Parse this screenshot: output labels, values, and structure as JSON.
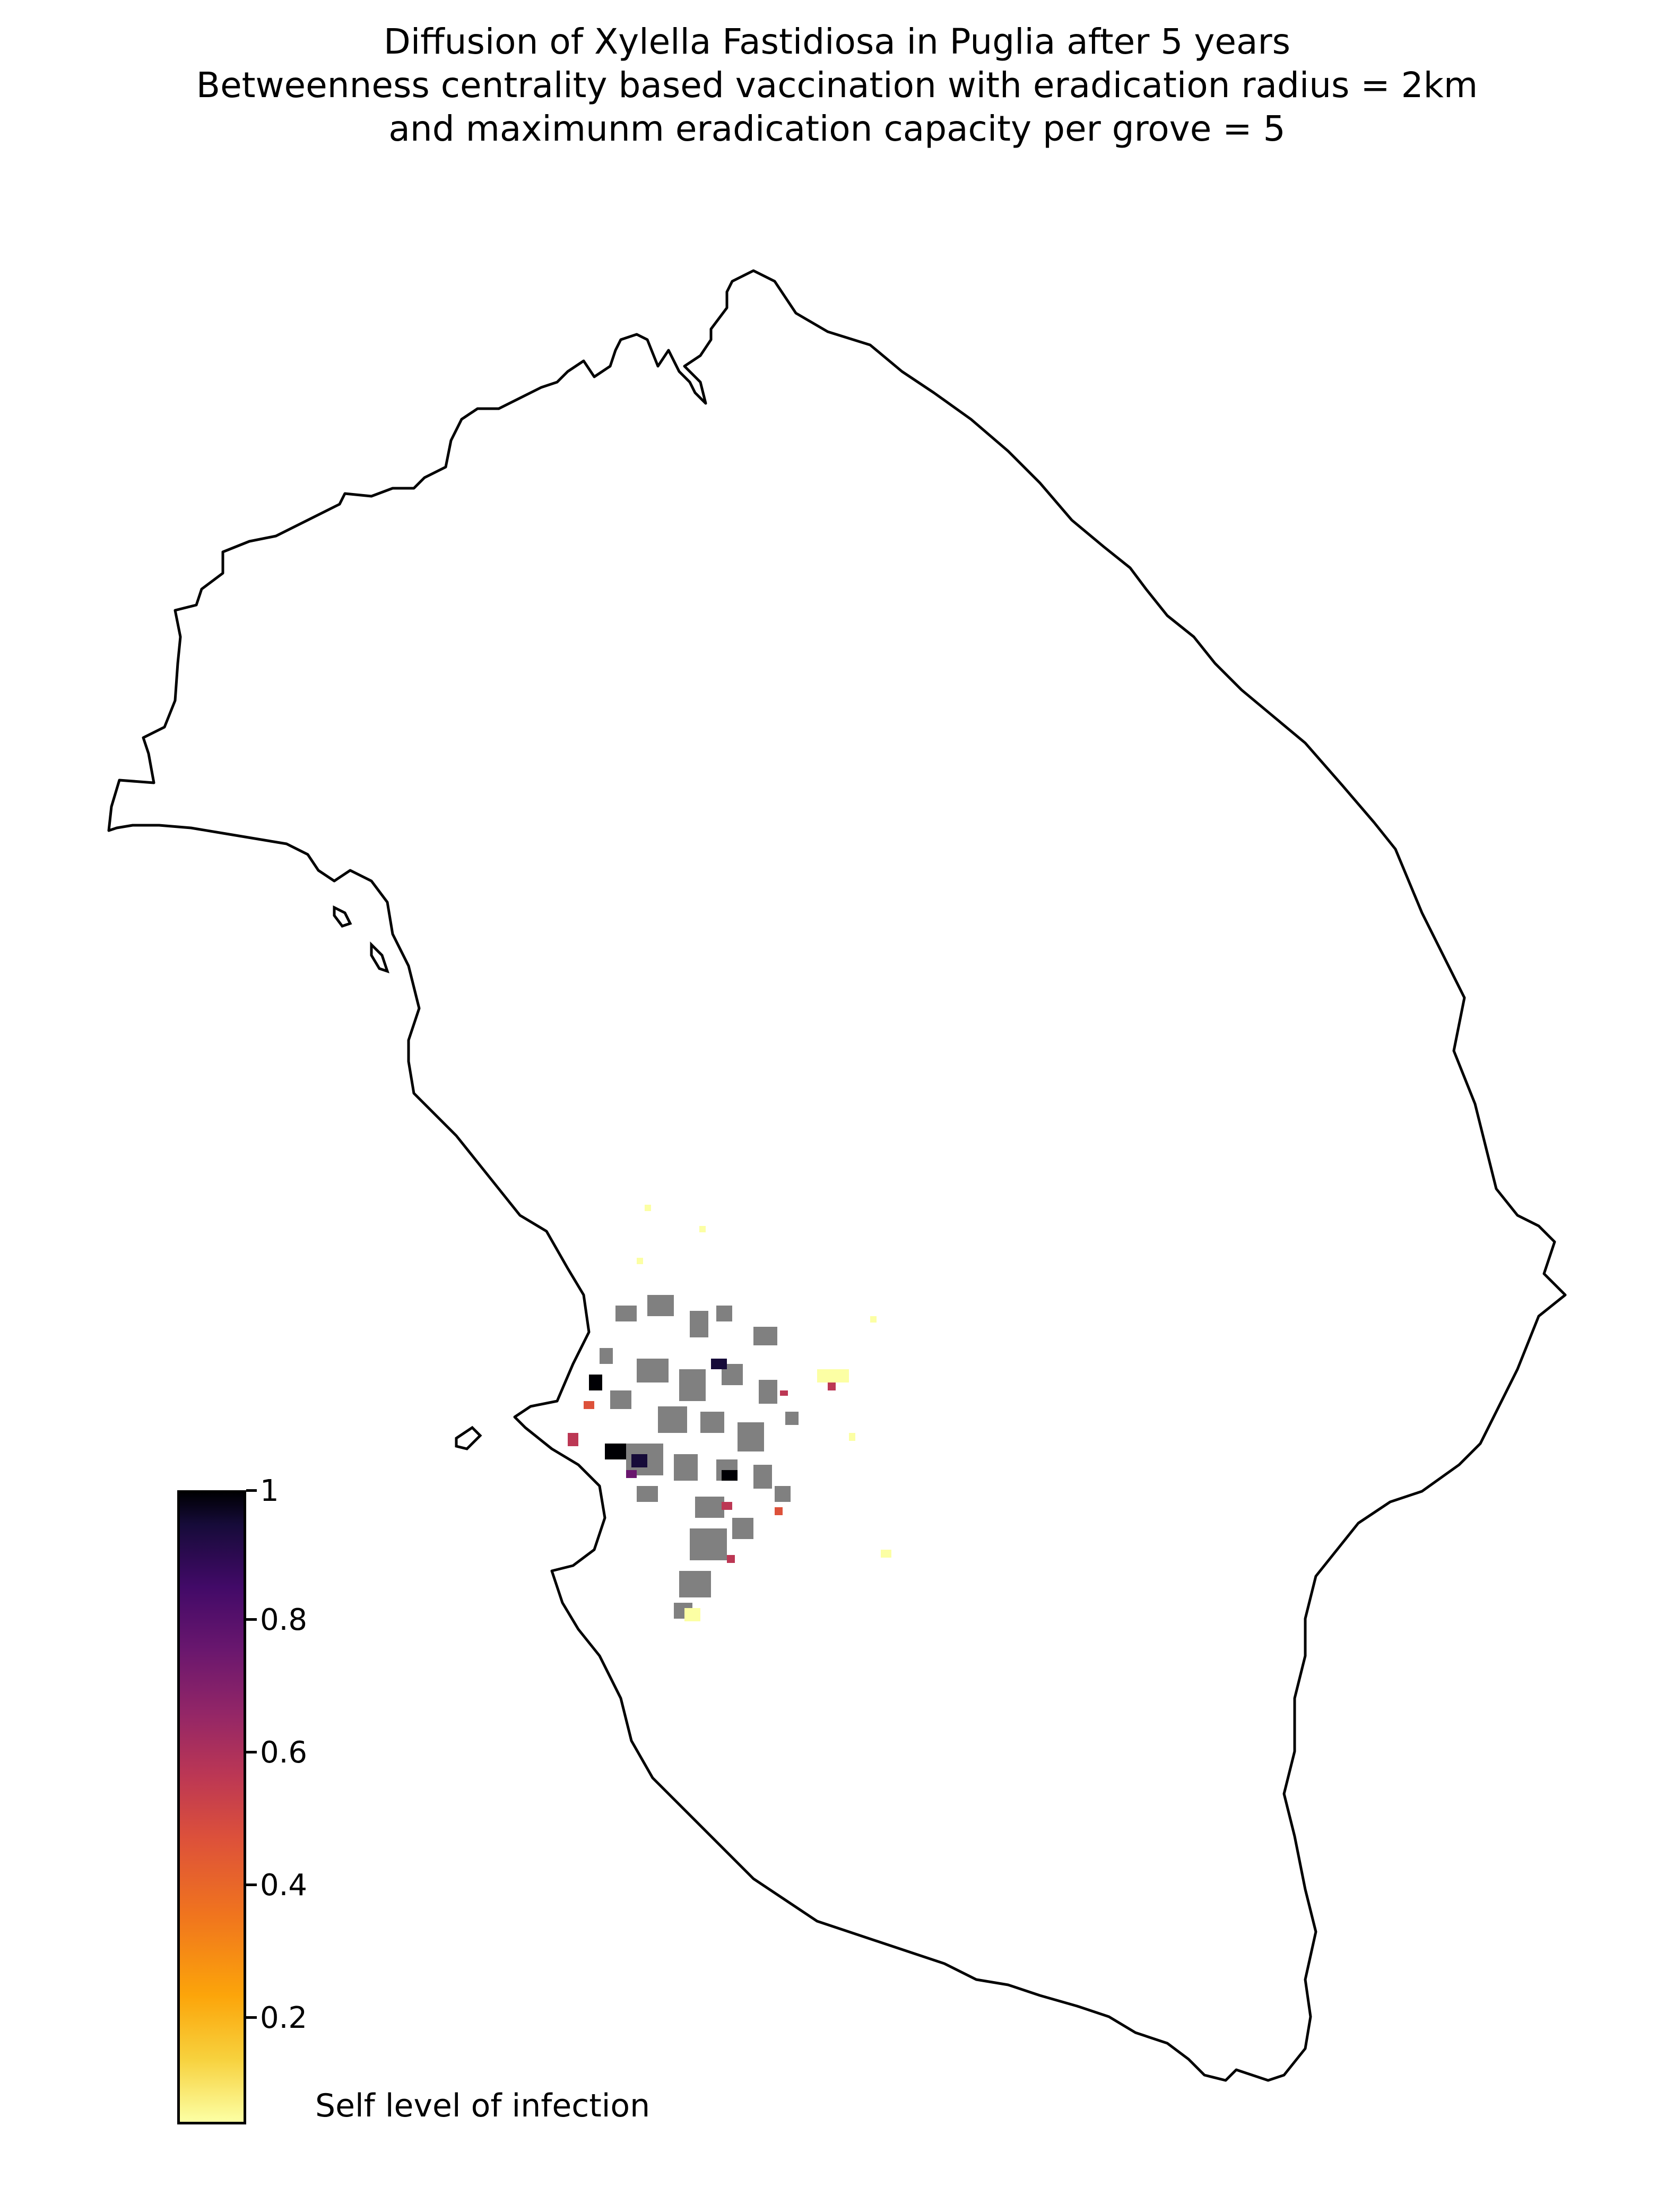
{
  "title": {
    "lines": [
      "Diffusion of Xylella Fastidiosa in Puglia after 5 years",
      "Betweenness centrality based vaccination with eradication radius = 2km",
      "and maximunm eradication capacity per grove = 5"
    ]
  },
  "colorbar": {
    "label": "Self level of infection",
    "range": [
      0,
      1
    ],
    "ticks": [
      {
        "value": 1,
        "label": "1"
      },
      {
        "value": 0.8,
        "label": "0.8"
      },
      {
        "value": 0.6,
        "label": "0.6"
      },
      {
        "value": 0.4,
        "label": "0.4"
      },
      {
        "value": 0.2,
        "label": "0.2"
      }
    ],
    "colormap": "inferno_r",
    "colors": [
      "#fcffa4",
      "#f7d13d",
      "#fca50a",
      "#f0741e",
      "#dd513a",
      "#bc3754",
      "#932667",
      "#6a176e",
      "#420a68",
      "#160b39",
      "#000004"
    ]
  },
  "map": {
    "region": "Puglia",
    "outline_color": "#000000",
    "not_infected_color": "#808080"
  }
}
